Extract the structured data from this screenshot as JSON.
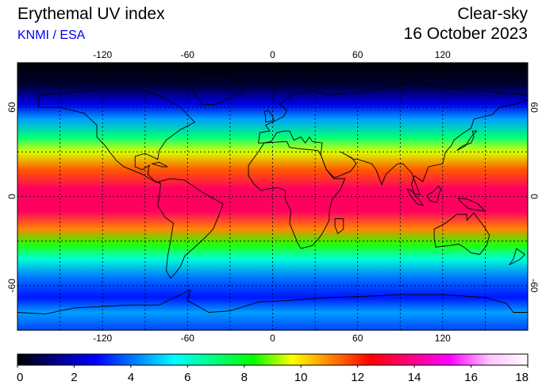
{
  "header": {
    "title": "Erythemal UV index",
    "credit": "KNMI / ESA",
    "condition": "Clear-sky",
    "date": "16 October 2023"
  },
  "map": {
    "lon_ticks": [
      -120,
      -60,
      0,
      60,
      120
    ],
    "lat_ticks": [
      60,
      0,
      -60
    ],
    "lon_range": [
      -180,
      180
    ],
    "lat_range": [
      -90,
      90
    ],
    "grid": "dotted, every 30 degrees",
    "projection": "equirectangular"
  },
  "colorbar": {
    "ticks": [
      0,
      2,
      4,
      6,
      8,
      10,
      12,
      14,
      16,
      18
    ],
    "colors": [
      "#000000",
      "#00008b",
      "#0000ff",
      "#0080ff",
      "#00ffff",
      "#00ff80",
      "#00ff00",
      "#ffff00",
      "#ff8000",
      "#ff0000",
      "#ff0080",
      "#ff00ff",
      "#ffc0ff",
      "#ffffff"
    ]
  },
  "uv_profile": [
    {
      "lat": 90,
      "uv": 0
    },
    {
      "lat": 75,
      "uv": 0.5
    },
    {
      "lat": 62,
      "uv": 2.5
    },
    {
      "lat": 52,
      "uv": 4.5
    },
    {
      "lat": 40,
      "uv": 7
    },
    {
      "lat": 30,
      "uv": 9.5
    },
    {
      "lat": 18,
      "uv": 11.5
    },
    {
      "lat": 5,
      "uv": 13.5
    },
    {
      "lat": -10,
      "uv": 13.5
    },
    {
      "lat": -22,
      "uv": 11
    },
    {
      "lat": -32,
      "uv": 8.5
    },
    {
      "lat": -42,
      "uv": 6
    },
    {
      "lat": -55,
      "uv": 4
    },
    {
      "lat": -68,
      "uv": 3
    },
    {
      "lat": -78,
      "uv": 4.5
    },
    {
      "lat": -90,
      "uv": 3.5
    }
  ]
}
